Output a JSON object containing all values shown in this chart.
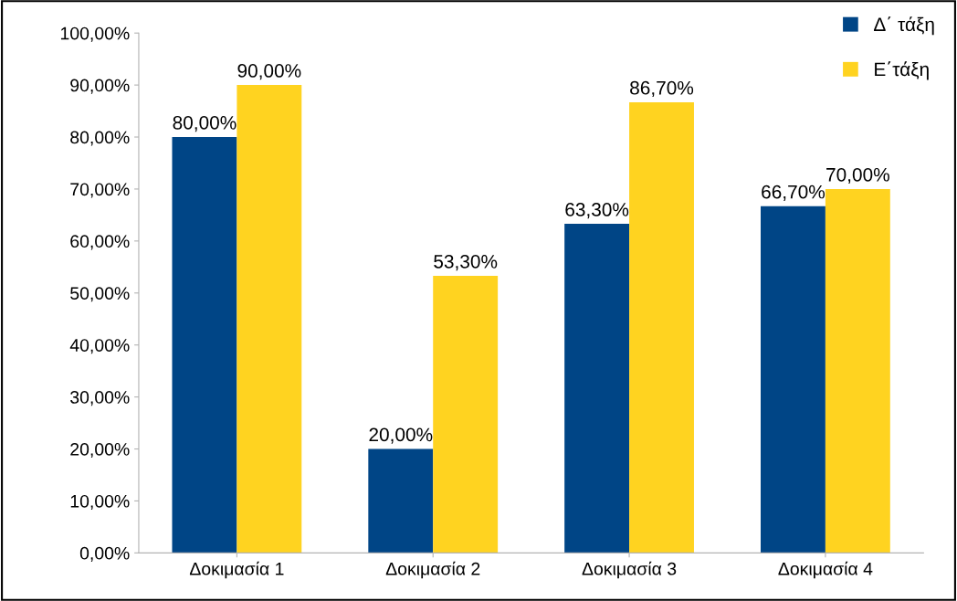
{
  "chart_data": {
    "type": "bar",
    "categories": [
      "Δοκιμασία 1",
      "Δοκιμασία 2",
      "Δοκιμασία 3",
      "Δοκιμασία 4"
    ],
    "series": [
      {
        "name": "Δ΄ τάξη",
        "color": "#004586",
        "values": [
          80,
          20,
          63.3,
          66.7
        ],
        "value_labels": [
          "80,00%",
          "20,00%",
          "63,30%",
          "66,70%"
        ]
      },
      {
        "name": "Ε΄τάξη",
        "color": "#ffd320",
        "values": [
          90,
          53.3,
          86.7,
          70
        ],
        "value_labels": [
          "90,00%",
          "53,30%",
          "86,70%",
          "70,00%"
        ]
      }
    ],
    "ylim": [
      0,
      100
    ],
    "yticks": [
      {
        "value": 0,
        "label": "0,00%"
      },
      {
        "value": 10,
        "label": "10,00%"
      },
      {
        "value": 20,
        "label": "20,00%"
      },
      {
        "value": 30,
        "label": "30,00%"
      },
      {
        "value": 40,
        "label": "40,00%"
      },
      {
        "value": 50,
        "label": "50,00%"
      },
      {
        "value": 60,
        "label": "60,00%"
      },
      {
        "value": 70,
        "label": "70,00%"
      },
      {
        "value": 80,
        "label": "80,00%"
      },
      {
        "value": 90,
        "label": "90,00%"
      },
      {
        "value": 100,
        "label": "100,00%"
      }
    ],
    "grid": false,
    "legend": "top right"
  }
}
